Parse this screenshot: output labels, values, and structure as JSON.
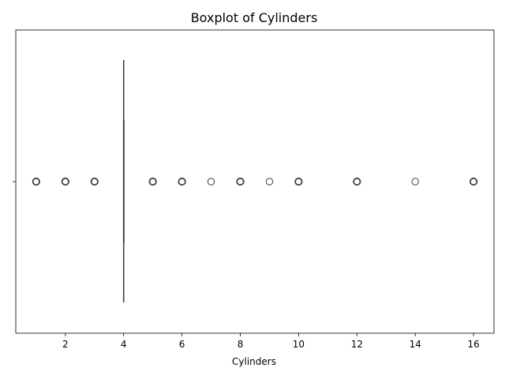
{
  "chart_data": {
    "type": "boxplot",
    "title": "Boxplot of Cylinders",
    "xlabel": "Cylinders",
    "ylabel": "",
    "xlim": [
      0.3,
      16.7
    ],
    "xticks": [
      2,
      4,
      6,
      8,
      10,
      12,
      14,
      16
    ],
    "xtick_labels": [
      "2",
      "4",
      "6",
      "8",
      "10",
      "12",
      "14",
      "16"
    ],
    "orientation": "horizontal",
    "grid": false,
    "box": {
      "q1": 4,
      "median": 4,
      "q3": 4,
      "whisker_low": 4,
      "whisker_high": 4
    },
    "outliers": [
      1,
      2,
      3,
      5,
      6,
      7,
      8,
      9,
      10,
      12,
      14,
      16
    ],
    "colors": {
      "box_line": "#3f3f3f",
      "outlier_edge": "#3f3f3f",
      "axis": "#000000"
    }
  }
}
